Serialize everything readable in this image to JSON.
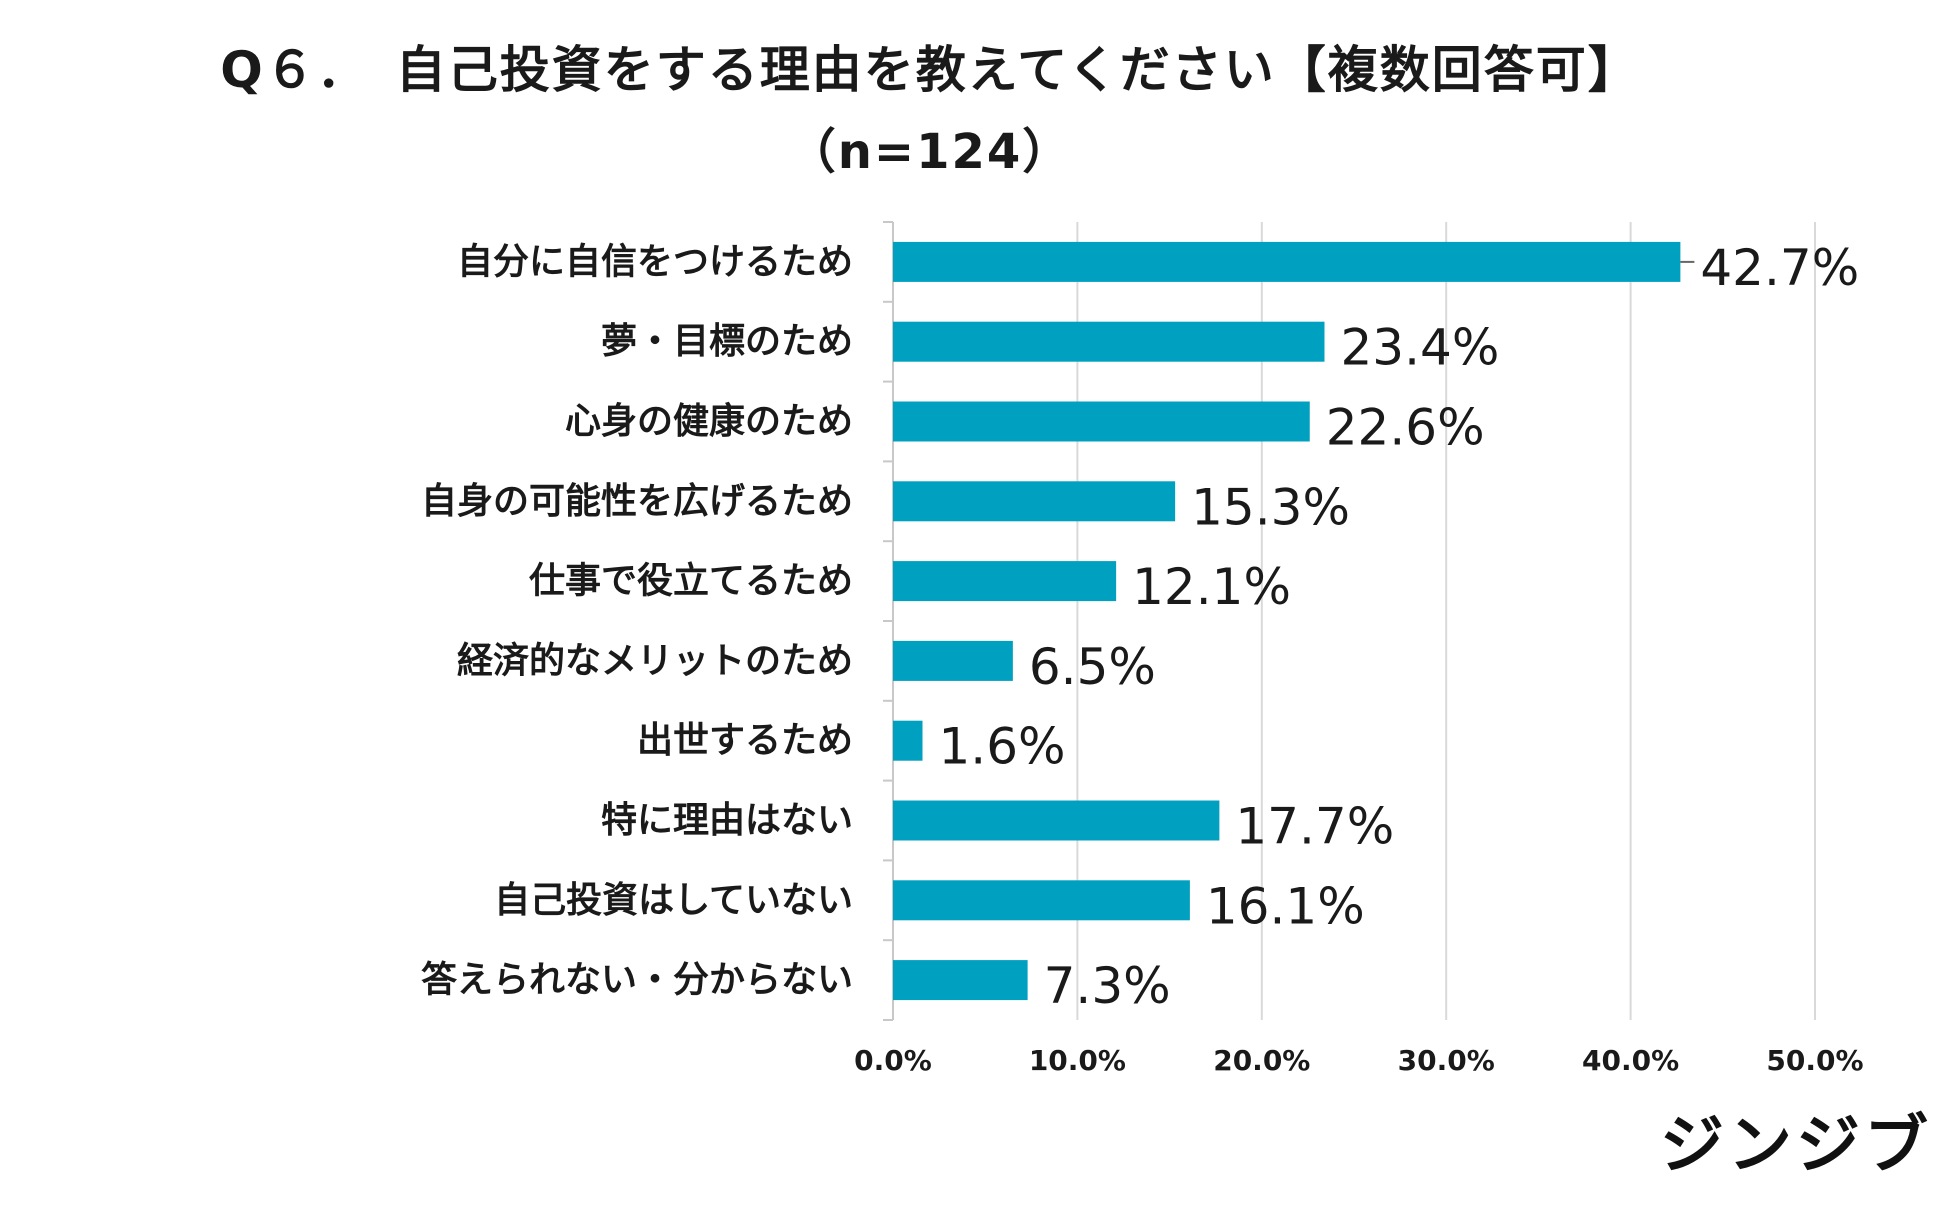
{
  "title": "Q６．　自己投資をする理由を教えてください【複数回答可】",
  "subtitle": "（n=124）",
  "brand": "ジンジブ",
  "colors": {
    "bar": "#00a0c0",
    "grid": "#d9d9d9",
    "axis": "#c8c8c8",
    "text": "#1a1a1a"
  },
  "chart_data": {
    "type": "bar",
    "orientation": "horizontal",
    "title": "Q６．　自己投資をする理由を教えてください【複数回答可】",
    "subtitle": "（n=124）",
    "categories": [
      "自分に自信をつけるため",
      "夢・目標のため",
      "心身の健康のため",
      "自身の可能性を広げるため",
      "仕事で役立てるため",
      "経済的なメリットのため",
      "出世するため",
      "特に理由はない",
      "自己投資はしていない",
      "答えられない・分からない"
    ],
    "values": [
      42.7,
      23.4,
      22.6,
      15.3,
      12.1,
      6.5,
      1.6,
      17.7,
      16.1,
      7.3
    ],
    "value_labels": [
      "42.7%",
      "23.4%",
      "22.6%",
      "15.3%",
      "12.1%",
      "6.5%",
      "1.6%",
      "17.7%",
      "16.1%",
      "7.3%"
    ],
    "xlim": [
      0,
      50
    ],
    "xticks": [
      0,
      10,
      20,
      30,
      40,
      50
    ],
    "xtick_labels": [
      "0.0%",
      "10.0%",
      "20.0%",
      "30.0%",
      "40.0%",
      "50.0%"
    ],
    "grid": true,
    "legend": "none"
  }
}
